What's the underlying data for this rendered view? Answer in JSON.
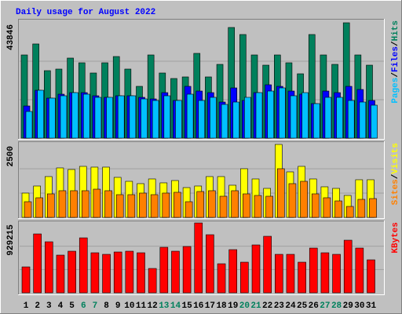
{
  "chart_data": [
    {
      "type": "bar",
      "title": "Daily usage for August 2022",
      "title_color": "#0000ff",
      "ylim": [
        0,
        43846
      ],
      "yticks": [
        43846
      ],
      "series": [
        {
          "name": "Hits",
          "color": "#00805c",
          "values": [
            31620,
            35800,
            25650,
            26250,
            30430,
            28640,
            24760,
            28640,
            31020,
            26250,
            19690,
            31620,
            24760,
            22670,
            23270,
            32220,
            23270,
            28040,
            42060,
            39380,
            31620,
            27740,
            31620,
            28640,
            24460,
            39380,
            31620,
            28040,
            43846,
            31620,
            27740
          ]
        },
        {
          "name": "Files",
          "color": "#0000ff",
          "values": [
            12230,
            18196,
            15213,
            16705,
            17301,
            17301,
            16108,
            15512,
            16108,
            16108,
            15512,
            14915,
            17301,
            14318,
            19688,
            17898,
            17301,
            13722,
            19091,
            14318,
            17301,
            20284,
            19688,
            17898,
            16705,
            13125,
            17898,
            17301,
            19688,
            18495,
            14318
          ]
        },
        {
          "name": "Pages",
          "color": "#00c0ff",
          "values": [
            10142,
            18196,
            15213,
            16108,
            17301,
            16705,
            15512,
            15512,
            16108,
            16108,
            14915,
            14318,
            16108,
            14318,
            16705,
            14318,
            15512,
            12827,
            13722,
            15512,
            17301,
            17898,
            19091,
            16108,
            17301,
            13125,
            15512,
            15512,
            14318,
            13722,
            12529
          ]
        }
      ]
    },
    {
      "type": "bar",
      "ylim": [
        0,
        2500
      ],
      "yticks": [
        2500
      ],
      "series": [
        {
          "name": "Visits",
          "color": "#ffff00",
          "values": [
            834,
            1076,
            1399,
            1695,
            1641,
            1749,
            1722,
            1722,
            1372,
            1237,
            1157,
            1318,
            1184,
            1264,
            1022,
            1076,
            1399,
            1399,
            1103,
            1668,
            1318,
            995,
            2500,
            1560,
            1749,
            1318,
            1049,
            995,
            753,
            1291,
            1291
          ]
        },
        {
          "name": "Sites",
          "color": "#ff8000",
          "values": [
            538,
            673,
            807,
            915,
            915,
            915,
            968,
            915,
            780,
            780,
            834,
            780,
            834,
            861,
            538,
            888,
            915,
            726,
            915,
            807,
            753,
            726,
            1668,
            1157,
            1237,
            807,
            673,
            565,
            377,
            619,
            646
          ]
        }
      ]
    },
    {
      "type": "bar",
      "ylim": [
        0,
        929215
      ],
      "yticks": [
        929215
      ],
      "categories": [
        "1",
        "2",
        "3",
        "4",
        "5",
        "6",
        "7",
        "8",
        "9",
        "10",
        "11",
        "12",
        "13",
        "14",
        "15",
        "16",
        "17",
        "18",
        "19",
        "20",
        "21",
        "22",
        "23",
        "24",
        "25",
        "26",
        "27",
        "28",
        "29",
        "30",
        "31"
      ],
      "category_colors": [
        "#000000",
        "#000000",
        "#000000",
        "#000000",
        "#000000",
        "#00805c",
        "#00805c",
        "#000000",
        "#000000",
        "#000000",
        "#000000",
        "#000000",
        "#00805c",
        "#00805c",
        "#000000",
        "#000000",
        "#000000",
        "#000000",
        "#000000",
        "#00805c",
        "#00805c",
        "#000000",
        "#000000",
        "#000000",
        "#000000",
        "#000000",
        "#00805c",
        "#00805c",
        "#000000",
        "#000000",
        "#000000"
      ],
      "series": [
        {
          "name": "KBytes",
          "color": "#ff0000",
          "values": [
            344520,
            783000,
            678600,
            501120,
            553320,
            730800,
            532440,
            511560,
            542880,
            553320,
            532440,
            323640,
            605520,
            553320,
            615960,
            929215,
            772560,
            386280,
            574200,
            407160,
            636840,
            751680,
            511560,
            511560,
            407160,
            595080,
            532440,
            511560,
            699480,
            595080,
            438480
          ]
        }
      ]
    }
  ]
}
